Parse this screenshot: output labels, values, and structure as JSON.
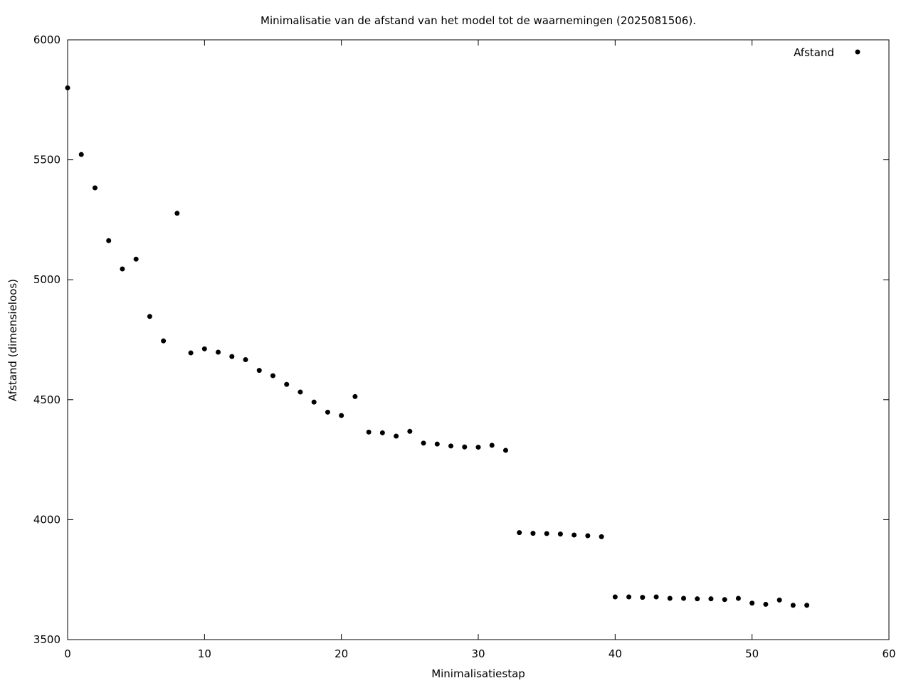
{
  "chart_data": {
    "type": "scatter",
    "title": "Minimalisatie van de afstand van het model tot de waarnemingen (2025081506).",
    "xlabel": "Minimalisatiestap",
    "ylabel": "Afstand (dimensieloos)",
    "xlim": [
      0,
      60
    ],
    "ylim": [
      3500,
      6000
    ],
    "xticks": [
      0,
      10,
      20,
      30,
      40,
      50,
      60
    ],
    "yticks": [
      3500,
      4000,
      4500,
      5000,
      5500,
      6000
    ],
    "grid": false,
    "legend_position": "top-right",
    "series": [
      {
        "name": "Afstand",
        "color": "#000000",
        "x": [
          0,
          1,
          2,
          3,
          4,
          5,
          6,
          7,
          8,
          9,
          10,
          11,
          12,
          13,
          14,
          15,
          16,
          17,
          18,
          19,
          20,
          21,
          22,
          23,
          24,
          25,
          26,
          27,
          28,
          29,
          30,
          31,
          32,
          33,
          34,
          35,
          36,
          37,
          38,
          39,
          40,
          41,
          42,
          43,
          44,
          45,
          46,
          47,
          48,
          49,
          50,
          51,
          52,
          53,
          54
        ],
        "y": [
          5800,
          5522,
          5383,
          5163,
          5045,
          5086,
          4847,
          4745,
          5277,
          4695,
          4712,
          4698,
          4680,
          4667,
          4622,
          4600,
          4564,
          4532,
          4490,
          4448,
          4434,
          4513,
          4365,
          4362,
          4348,
          4368,
          4319,
          4315,
          4307,
          4303,
          4302,
          4310,
          4289,
          3946,
          3943,
          3942,
          3940,
          3936,
          3933,
          3929,
          3678,
          3678,
          3676,
          3678,
          3672,
          3672,
          3670,
          3670,
          3667,
          3672,
          3652,
          3647,
          3665,
          3643,
          3643
        ]
      }
    ]
  }
}
